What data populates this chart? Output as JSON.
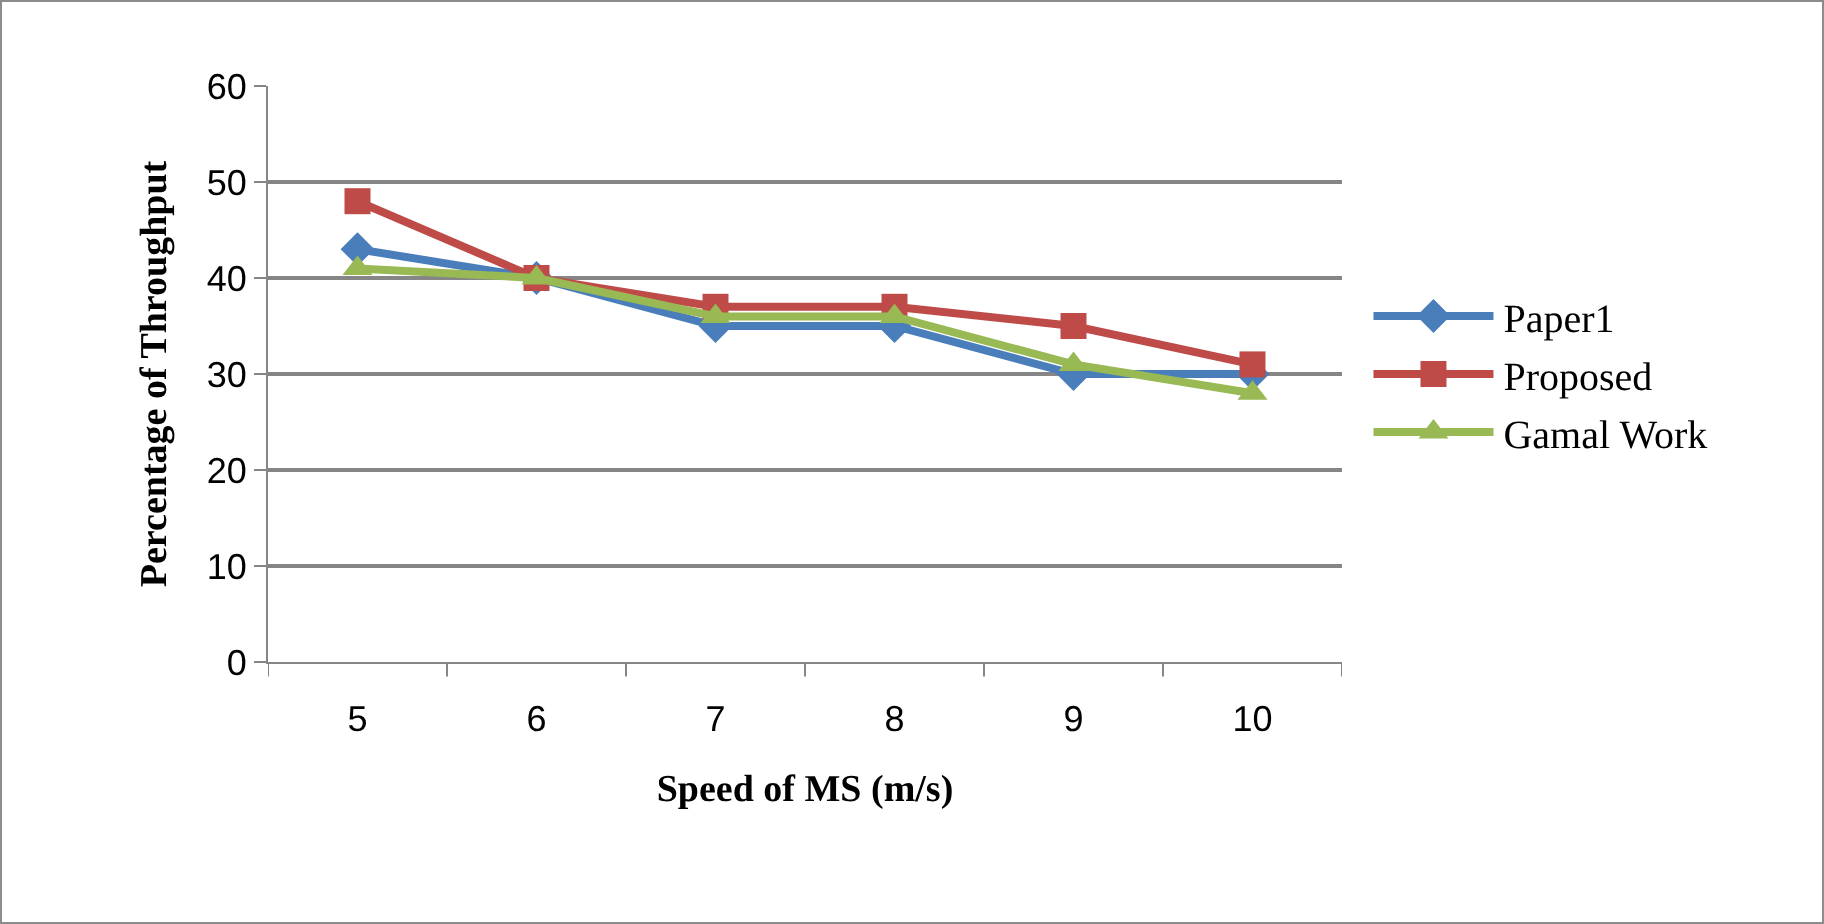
{
  "chart_data": {
    "type": "line",
    "xlabel": "Speed of MS (m/s)",
    "ylabel": "Percentage of Throughput",
    "categories": [
      "5",
      "6",
      "7",
      "8",
      "9",
      "10"
    ],
    "series": [
      {
        "name": "Paper1",
        "color": "#4a7ebb",
        "marker": "diamond",
        "values": [
          43,
          40,
          35,
          35,
          30,
          30
        ]
      },
      {
        "name": "Proposed",
        "color": "#be4b48",
        "marker": "square",
        "values": [
          48,
          40,
          37,
          37,
          35,
          31
        ]
      },
      {
        "name": "Gamal Work",
        "color": "#98b954",
        "marker": "triangle",
        "values": [
          41,
          40,
          36,
          36,
          31,
          28
        ]
      }
    ],
    "ylim": [
      0,
      60
    ],
    "yticks": [
      0,
      10,
      20,
      30,
      40,
      50,
      60
    ],
    "grid": "y",
    "legend": "right",
    "line_style": "solid"
  }
}
